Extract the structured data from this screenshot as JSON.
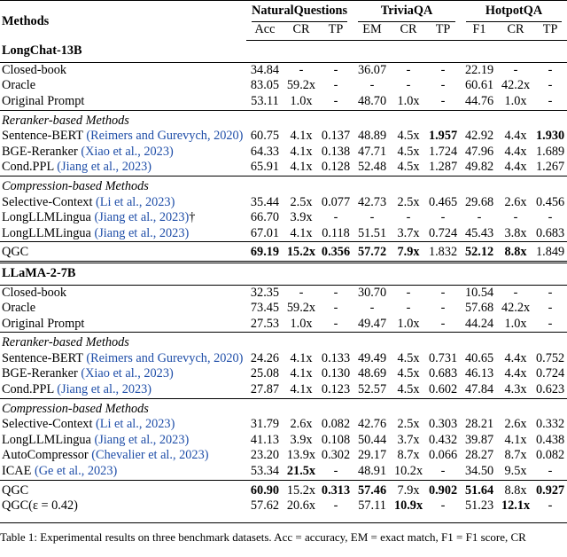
{
  "table": {
    "header": {
      "methods": "Methods",
      "groups": [
        {
          "name": "NaturalQuestions",
          "columns": [
            "Acc",
            "CR",
            "TP"
          ]
        },
        {
          "name": "TriviaQA",
          "columns": [
            "EM",
            "CR",
            "TP"
          ]
        },
        {
          "name": "HotpotQA",
          "columns": [
            "F1",
            "CR",
            "TP"
          ]
        }
      ]
    },
    "sections": [
      {
        "title": "LongChat-13B",
        "blocks": [
          {
            "rows": [
              {
                "method": "Closed-book",
                "values": [
                  "34.84",
                  "-",
                  "-",
                  "36.07",
                  "-",
                  "-",
                  "22.19",
                  "-",
                  "-"
                ]
              },
              {
                "method": "Oracle",
                "values": [
                  "83.05",
                  "59.2x",
                  "-",
                  "-",
                  "-",
                  "-",
                  "60.61",
                  "42.2x",
                  "-"
                ]
              },
              {
                "method": "Original Prompt",
                "values": [
                  "53.11",
                  "1.0x",
                  "-",
                  "48.70",
                  "1.0x",
                  "-",
                  "44.76",
                  "1.0x",
                  "-"
                ]
              }
            ]
          },
          {
            "heading": "Reranker-based Methods",
            "rows": [
              {
                "method": "Sentence-BERT",
                "cite": "(Reimers and Gurevych, 2020)",
                "values": [
                  "60.75",
                  "4.1x",
                  "0.137",
                  "48.89",
                  "4.5x",
                  "1.957",
                  "42.92",
                  "4.4x",
                  "1.930"
                ],
                "bold": [
                  5,
                  8
                ]
              },
              {
                "method": "BGE-Reranker",
                "cite": "(Xiao et al., 2023)",
                "values": [
                  "64.33",
                  "4.1x",
                  "0.138",
                  "47.71",
                  "4.5x",
                  "1.724",
                  "47.96",
                  "4.4x",
                  "1.689"
                ]
              },
              {
                "method": "Cond.PPL",
                "cite": "(Jiang et al., 2023)",
                "values": [
                  "65.91",
                  "4.1x",
                  "0.128",
                  "52.48",
                  "4.5x",
                  "1.287",
                  "49.82",
                  "4.4x",
                  "1.267"
                ]
              }
            ]
          },
          {
            "heading": "Compression-based Methods",
            "rows": [
              {
                "method": "Selective-Context",
                "cite": "(Li et al., 2023)",
                "values": [
                  "35.44",
                  "2.5x",
                  "0.077",
                  "42.73",
                  "2.5x",
                  "0.465",
                  "29.68",
                  "2.6x",
                  "0.456"
                ]
              },
              {
                "method": "LongLLMLingua",
                "cite": "(Jiang et al., 2023)",
                "suffix": "†",
                "values": [
                  "66.70",
                  "3.9x",
                  "-",
                  "-",
                  "-",
                  "-",
                  "-",
                  "-",
                  "-"
                ]
              },
              {
                "method": "LongLLMLingua",
                "cite": "(Jiang et al., 2023)",
                "values": [
                  "67.01",
                  "4.1x",
                  "0.118",
                  "51.51",
                  "3.7x",
                  "0.724",
                  "45.43",
                  "3.8x",
                  "0.683"
                ]
              }
            ]
          },
          {
            "rows": [
              {
                "method": "QGC",
                "values": [
                  "69.19",
                  "15.2x",
                  "0.356",
                  "57.72",
                  "7.9x",
                  "1.832",
                  "52.12",
                  "8.8x",
                  "1.849"
                ],
                "bold": [
                  0,
                  1,
                  2,
                  3,
                  4,
                  6,
                  7
                ]
              }
            ]
          }
        ]
      },
      {
        "title": "LLaMA-2-7B",
        "blocks": [
          {
            "rows": [
              {
                "method": "Closed-book",
                "values": [
                  "32.35",
                  "-",
                  "-",
                  "30.70",
                  "-",
                  "-",
                  "10.54",
                  "-",
                  "-"
                ]
              },
              {
                "method": "Oracle",
                "values": [
                  "73.45",
                  "59.2x",
                  "-",
                  "-",
                  "-",
                  "-",
                  "57.68",
                  "42.2x",
                  "-"
                ]
              },
              {
                "method": "Original Prompt",
                "values": [
                  "27.53",
                  "1.0x",
                  "-",
                  "49.47",
                  "1.0x",
                  "-",
                  "44.24",
                  "1.0x",
                  "-"
                ]
              }
            ]
          },
          {
            "heading": "Reranker-based Methods",
            "rows": [
              {
                "method": "Sentence-BERT",
                "cite": "(Reimers and Gurevych, 2020)",
                "values": [
                  "24.26",
                  "4.1x",
                  "0.133",
                  "49.49",
                  "4.5x",
                  "0.731",
                  "40.65",
                  "4.4x",
                  "0.752"
                ]
              },
              {
                "method": "BGE-Reranker",
                "cite": "(Xiao et al., 2023)",
                "values": [
                  "25.08",
                  "4.1x",
                  "0.130",
                  "48.69",
                  "4.5x",
                  "0.683",
                  "46.13",
                  "4.4x",
                  "0.724"
                ]
              },
              {
                "method": "Cond.PPL",
                "cite": "(Jiang et al., 2023)",
                "values": [
                  "27.87",
                  "4.1x",
                  "0.123",
                  "52.57",
                  "4.5x",
                  "0.602",
                  "47.84",
                  "4.3x",
                  "0.623"
                ]
              }
            ]
          },
          {
            "heading": "Compression-based Methods",
            "rows": [
              {
                "method": "Selective-Context",
                "cite": "(Li et al., 2023)",
                "values": [
                  "31.79",
                  "2.6x",
                  "0.082",
                  "42.76",
                  "2.5x",
                  "0.303",
                  "28.21",
                  "2.6x",
                  "0.332"
                ]
              },
              {
                "method": "LongLLMLingua",
                "cite": "(Jiang et al., 2023)",
                "values": [
                  "41.13",
                  "3.9x",
                  "0.108",
                  "50.44",
                  "3.7x",
                  "0.432",
                  "39.87",
                  "4.1x",
                  "0.438"
                ]
              },
              {
                "method": "AutoCompressor",
                "cite": "(Chevalier et al., 2023)",
                "values": [
                  "23.20",
                  "13.9x",
                  "0.302",
                  "29.17",
                  "8.7x",
                  "0.066",
                  "28.27",
                  "8.7x",
                  "0.082"
                ]
              },
              {
                "method": "ICAE",
                "cite": "(Ge et al., 2023)",
                "values": [
                  "53.34",
                  "21.5x",
                  "-",
                  "48.91",
                  "10.2x",
                  "-",
                  "34.50",
                  "9.5x",
                  "-"
                ],
                "bold": [
                  1
                ]
              }
            ]
          },
          {
            "rows": [
              {
                "method": "QGC",
                "values": [
                  "60.90",
                  "15.2x",
                  "0.313",
                  "57.46",
                  "7.9x",
                  "0.902",
                  "51.64",
                  "8.8x",
                  "0.927"
                ],
                "bold": [
                  0,
                  2,
                  3,
                  5,
                  6,
                  8
                ]
              },
              {
                "method": "QGC(ε = 0.42)",
                "values": [
                  "57.62",
                  "20.6x",
                  "-",
                  "57.11",
                  "10.9x",
                  "-",
                  "51.23",
                  "12.1x",
                  "-"
                ],
                "bold": [
                  4,
                  7
                ]
              }
            ]
          }
        ]
      }
    ],
    "caption": "Table 1: Experimental results on three benchmark datasets. Acc = accuracy, EM = exact match, F1 = F1 score, CR"
  }
}
